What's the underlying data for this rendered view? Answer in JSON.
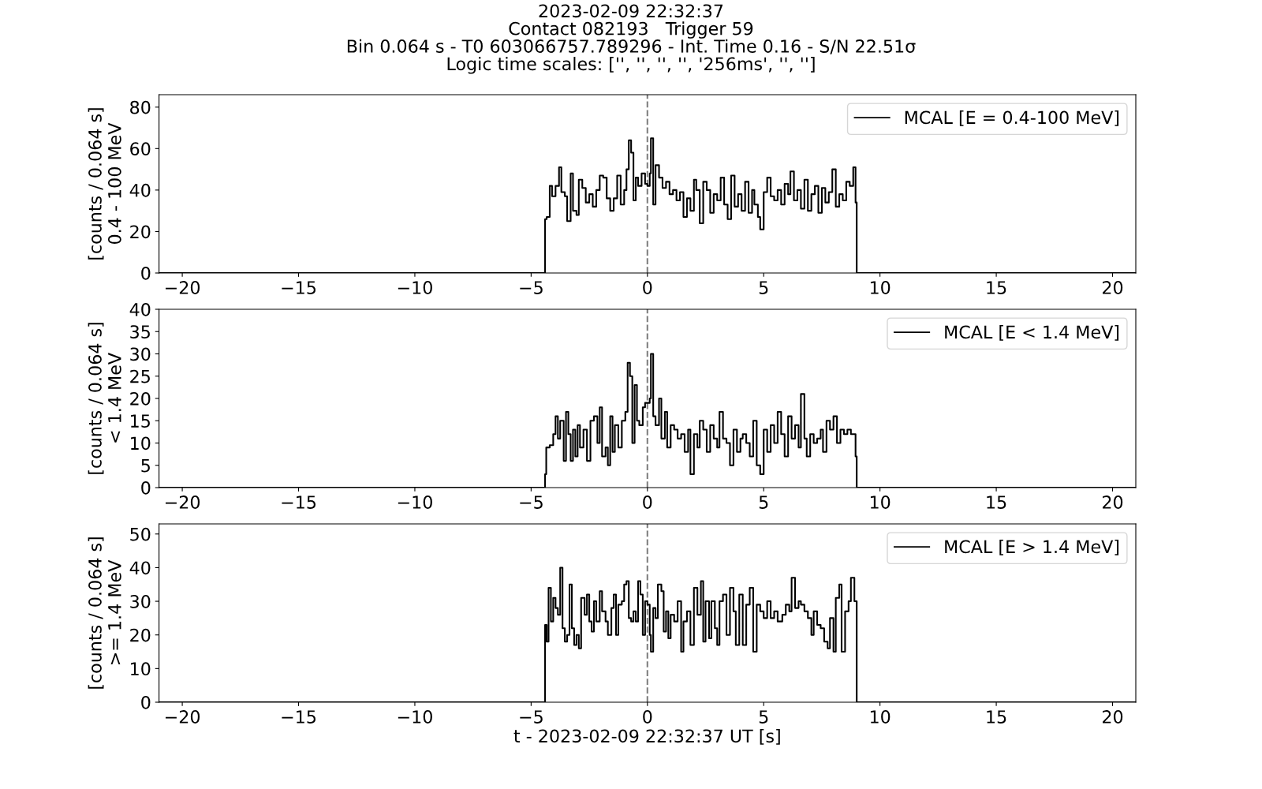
{
  "chart_data": [
    {
      "type": "step",
      "title": "2023-02-09 22:32:37\nContact 082193   Trigger 59\nBin 0.064 s - T0 603066757.789296 - Int. Time 0.16 - S/N 22.51σ\nLogic time scales: ['', '', '', '', '256ms', '', '']",
      "ylabel": "[counts / 0.064 s]\n0.4 - 100 MeV",
      "xlim": [
        -21,
        21
      ],
      "xticks": [
        {
          "value": -20,
          "label": "−20"
        },
        {
          "value": -15,
          "label": "−15"
        },
        {
          "value": -10,
          "label": "−10"
        },
        {
          "value": -5,
          "label": "−5"
        },
        0,
        5,
        10,
        15,
        20
      ],
      "ylim": [
        0,
        86
      ],
      "yticks": [
        0,
        20,
        40,
        60,
        80
      ],
      "grid": false,
      "legend": "top right",
      "marker": "none",
      "line_style": "solid",
      "ref_lines": [
        {
          "axis": "x",
          "value": 0,
          "color": "#7f7f7f",
          "line_style": "dashed"
        }
      ],
      "series": [
        {
          "name": "MCAL [E = 0.4-100 MeV]",
          "color": "#000000",
          "x": [
            -21,
            -4.4,
            -4.33,
            -4.2,
            -4.1,
            -3.95,
            -3.8,
            -3.7,
            -3.55,
            -3.45,
            -3.3,
            -3.2,
            -3.05,
            -2.95,
            -2.8,
            -2.65,
            -2.5,
            -2.35,
            -2.2,
            -2.05,
            -1.9,
            -1.75,
            -1.6,
            -1.45,
            -1.3,
            -1.15,
            -1.0,
            -0.9,
            -0.8,
            -0.7,
            -0.6,
            -0.5,
            -0.4,
            -0.25,
            -0.1,
            0.0,
            0.1,
            0.15,
            0.25,
            0.35,
            0.5,
            0.65,
            0.8,
            0.95,
            1.1,
            1.25,
            1.4,
            1.55,
            1.7,
            1.85,
            2.0,
            2.1,
            2.25,
            2.4,
            2.55,
            2.7,
            2.85,
            3.0,
            3.15,
            3.3,
            3.45,
            3.6,
            3.75,
            3.9,
            4.05,
            4.2,
            4.35,
            4.5,
            4.6,
            4.75,
            4.85,
            5.0,
            5.15,
            5.3,
            5.45,
            5.6,
            5.75,
            5.9,
            6.05,
            6.15,
            6.3,
            6.45,
            6.6,
            6.75,
            6.9,
            7.05,
            7.2,
            7.35,
            7.5,
            7.65,
            7.8,
            7.95,
            8.1,
            8.25,
            8.4,
            8.55,
            8.7,
            8.85,
            8.95,
            9.0,
            21
          ],
          "values": [
            0,
            26,
            27,
            42,
            37,
            42,
            51,
            39,
            37,
            25,
            48,
            30,
            28,
            45,
            41,
            34,
            38,
            32,
            40,
            47,
            46,
            36,
            30,
            36,
            47,
            33,
            40,
            50,
            64,
            58,
            35,
            46,
            42,
            48,
            43,
            42,
            48,
            65,
            33,
            52,
            46,
            41,
            44,
            38,
            40,
            35,
            39,
            27,
            36,
            30,
            45,
            40,
            24,
            44,
            40,
            29,
            38,
            35,
            46,
            33,
            26,
            47,
            32,
            38,
            30,
            44,
            29,
            40,
            33,
            27,
            21,
            39,
            46,
            37,
            35,
            40,
            33,
            43,
            38,
            49,
            35,
            40,
            31,
            45,
            30,
            38,
            42,
            29,
            41,
            34,
            39,
            50,
            32,
            38,
            35,
            44,
            42,
            51,
            34,
            0,
            0
          ]
        }
      ]
    },
    {
      "type": "step",
      "ylabel": "[counts / 0.064 s]\n< 1.4 MeV",
      "xlim": [
        -21,
        21
      ],
      "xticks": [
        {
          "value": -20,
          "label": "−20"
        },
        {
          "value": -15,
          "label": "−15"
        },
        {
          "value": -10,
          "label": "−10"
        },
        {
          "value": -5,
          "label": "−5"
        },
        0,
        5,
        10,
        15,
        20
      ],
      "ylim": [
        0,
        40
      ],
      "yticks": [
        0,
        5,
        10,
        15,
        20,
        25,
        30,
        35,
        40
      ],
      "grid": false,
      "legend": "top right",
      "marker": "none",
      "line_style": "solid",
      "ref_lines": [
        {
          "axis": "x",
          "value": 0,
          "color": "#7f7f7f",
          "line_style": "dashed"
        }
      ],
      "series": [
        {
          "name": "MCAL [E < 1.4 MeV]",
          "color": "#000000",
          "x": [
            -21,
            -4.4,
            -4.35,
            -4.2,
            -4.05,
            -3.95,
            -3.85,
            -3.75,
            -3.6,
            -3.5,
            -3.4,
            -3.3,
            -3.2,
            -3.1,
            -3.0,
            -2.9,
            -2.75,
            -2.6,
            -2.45,
            -2.3,
            -2.15,
            -2.05,
            -1.95,
            -1.8,
            -1.7,
            -1.6,
            -1.5,
            -1.4,
            -1.25,
            -1.1,
            -0.95,
            -0.85,
            -0.75,
            -0.65,
            -0.55,
            -0.45,
            -0.35,
            -0.2,
            -0.1,
            0.1,
            0.15,
            0.25,
            0.35,
            0.5,
            0.6,
            0.75,
            0.85,
            1.0,
            1.15,
            1.3,
            1.45,
            1.6,
            1.75,
            1.85,
            2.0,
            2.15,
            2.25,
            2.4,
            2.55,
            2.7,
            2.85,
            3.0,
            3.1,
            3.25,
            3.4,
            3.55,
            3.7,
            3.85,
            4.0,
            4.1,
            4.25,
            4.4,
            4.55,
            4.7,
            4.85,
            5.0,
            5.15,
            5.3,
            5.45,
            5.6,
            5.75,
            5.9,
            6.05,
            6.2,
            6.35,
            6.5,
            6.6,
            6.75,
            6.85,
            7.0,
            7.15,
            7.3,
            7.45,
            7.55,
            7.7,
            7.85,
            8.0,
            8.15,
            8.3,
            8.45,
            8.6,
            8.75,
            8.95,
            9.0,
            21
          ],
          "values": [
            0,
            3,
            9,
            9.5,
            12,
            16,
            11,
            15,
            6,
            17,
            12,
            6,
            13,
            7,
            14,
            9,
            13,
            6,
            15,
            16,
            10,
            18,
            7,
            9,
            5,
            16,
            8,
            14,
            9,
            15,
            17,
            28,
            25,
            10,
            23,
            15,
            14,
            18,
            19,
            20,
            30,
            16,
            14,
            20,
            11,
            17,
            9,
            14,
            13,
            11,
            12,
            8,
            13,
            3,
            12,
            9,
            15,
            13,
            8,
            14,
            11,
            9,
            17,
            11,
            10,
            5,
            13,
            8,
            11,
            12,
            10,
            7,
            15,
            5,
            3,
            13,
            8,
            14,
            10,
            17,
            12,
            7,
            16,
            11,
            14,
            9,
            21,
            11,
            7,
            12,
            10,
            11,
            13,
            8,
            15,
            13,
            16,
            10,
            13,
            12,
            13,
            12,
            7,
            0,
            0
          ]
        }
      ]
    },
    {
      "type": "step",
      "ylabel": "[counts / 0.064 s]\n>= 1.4 MeV",
      "xlabel": "t - 2023-02-09 22:32:37 UT [s]",
      "xlim": [
        -21,
        21
      ],
      "xticks": [
        {
          "value": -20,
          "label": "−20"
        },
        {
          "value": -15,
          "label": "−15"
        },
        {
          "value": -10,
          "label": "−10"
        },
        {
          "value": -5,
          "label": "−5"
        },
        0,
        5,
        10,
        15,
        20
      ],
      "ylim": [
        0,
        53
      ],
      "yticks": [
        0,
        10,
        20,
        30,
        40,
        50
      ],
      "grid": false,
      "legend": "top right",
      "marker": "none",
      "line_style": "solid",
      "ref_lines": [
        {
          "axis": "x",
          "value": 0,
          "color": "#7f7f7f",
          "line_style": "dashed"
        }
      ],
      "series": [
        {
          "name": "MCAL [E > 1.4 MeV]",
          "color": "#000000",
          "x": [
            -21,
            -4.4,
            -4.33,
            -4.25,
            -4.15,
            -4.05,
            -3.95,
            -3.85,
            -3.75,
            -3.65,
            -3.55,
            -3.45,
            -3.35,
            -3.25,
            -3.15,
            -3.05,
            -2.95,
            -2.85,
            -2.7,
            -2.6,
            -2.5,
            -2.4,
            -2.3,
            -2.2,
            -2.05,
            -1.95,
            -1.8,
            -1.7,
            -1.55,
            -1.45,
            -1.35,
            -1.25,
            -1.1,
            -1.0,
            -0.9,
            -0.8,
            -0.7,
            -0.6,
            -0.5,
            -0.4,
            -0.3,
            -0.2,
            -0.1,
            0.0,
            0.1,
            0.15,
            0.25,
            0.35,
            0.45,
            0.6,
            0.7,
            0.8,
            0.9,
            1.0,
            1.15,
            1.3,
            1.45,
            1.55,
            1.7,
            1.85,
            2.0,
            2.15,
            2.3,
            2.4,
            2.5,
            2.65,
            2.75,
            2.9,
            3.0,
            3.1,
            3.25,
            3.4,
            3.55,
            3.7,
            3.8,
            3.95,
            4.1,
            4.25,
            4.4,
            4.55,
            4.7,
            4.85,
            5.0,
            5.15,
            5.3,
            5.45,
            5.6,
            5.8,
            5.95,
            6.1,
            6.2,
            6.35,
            6.5,
            6.6,
            6.75,
            6.9,
            7.05,
            7.15,
            7.3,
            7.45,
            7.6,
            7.75,
            7.85,
            8.0,
            8.1,
            8.25,
            8.35,
            8.5,
            8.65,
            8.75,
            8.9,
            9.0,
            21
          ],
          "values": [
            0,
            23,
            18,
            34,
            24,
            31,
            28,
            26,
            40,
            22,
            18,
            20,
            35,
            22,
            17,
            20,
            16,
            31,
            26,
            32,
            24,
            21,
            30,
            24,
            33,
            27,
            24,
            20,
            28,
            32,
            20,
            29,
            30,
            35,
            36,
            25,
            24,
            27,
            24,
            36,
            32,
            20,
            30,
            29,
            20,
            15,
            28,
            25,
            35,
            33,
            21,
            27,
            19,
            26,
            24,
            30,
            15,
            24,
            27,
            17,
            34,
            26,
            36,
            18,
            30,
            19,
            30,
            22,
            17,
            30,
            32,
            20,
            34,
            27,
            17,
            32,
            17,
            29,
            34,
            15,
            29,
            27,
            25,
            30,
            25,
            27,
            24,
            26,
            29,
            27,
            37,
            28,
            30,
            29,
            27,
            25,
            20,
            27,
            23,
            22,
            18,
            16,
            25,
            15,
            31,
            35,
            15,
            27,
            30,
            37,
            30,
            0,
            0
          ]
        }
      ]
    }
  ]
}
